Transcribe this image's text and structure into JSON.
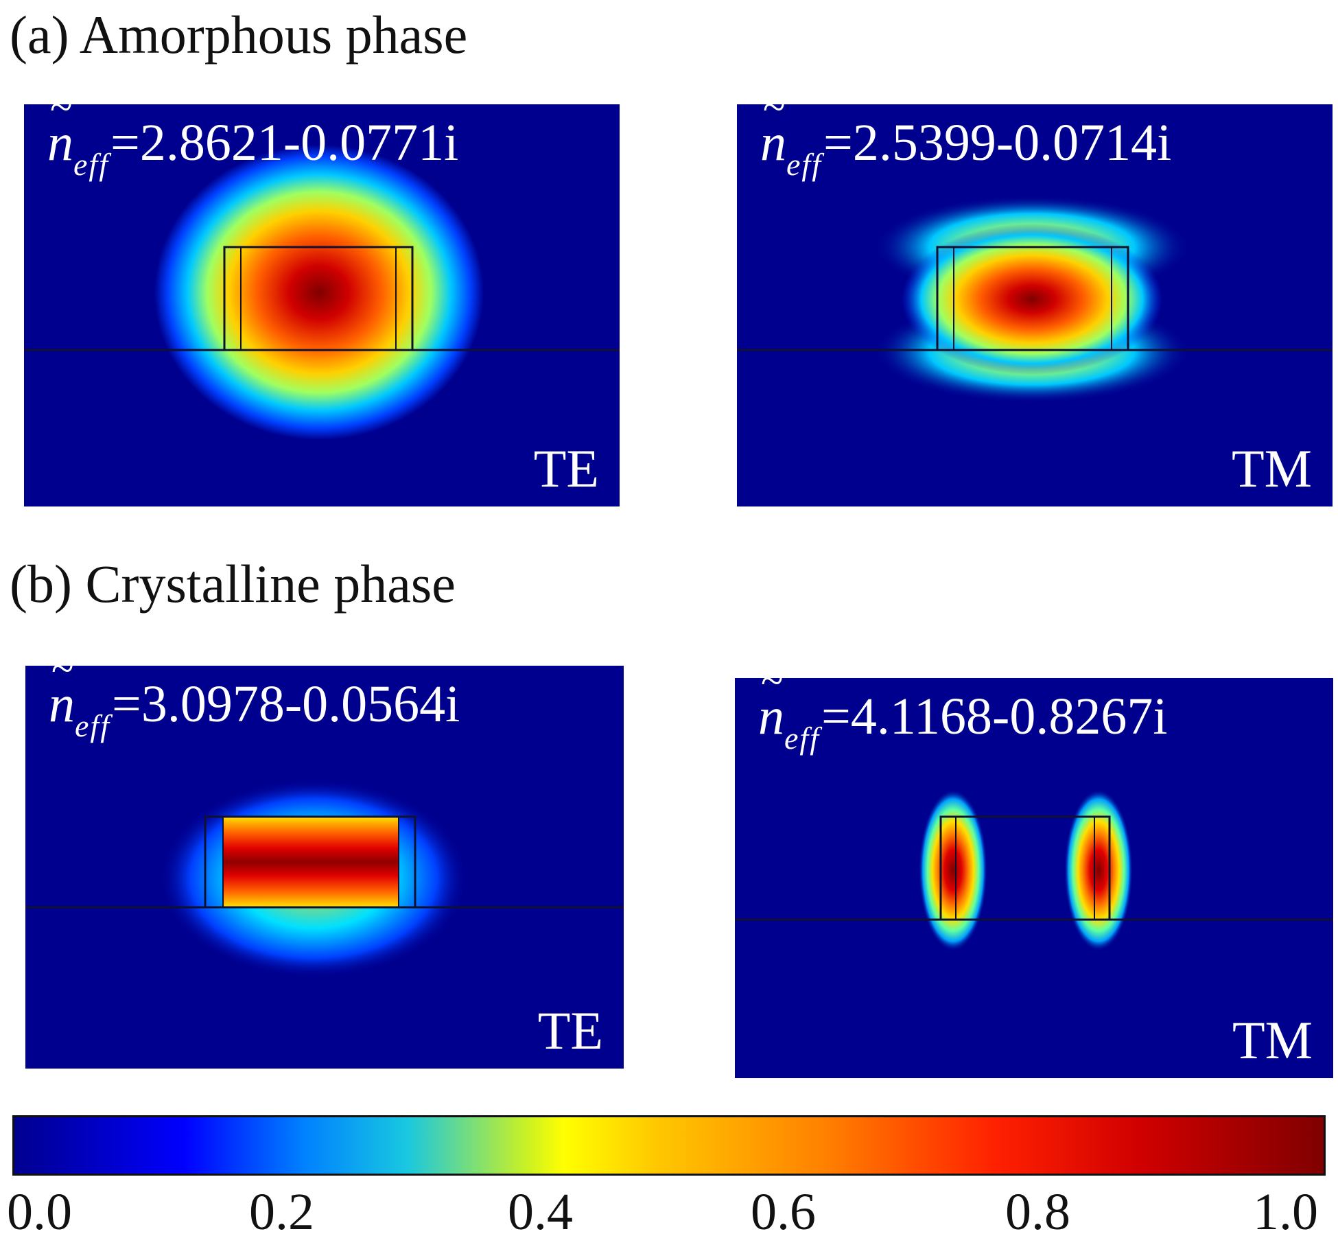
{
  "figure": {
    "title_a": "(a) Amorphous phase",
    "title_b": "(b) Crystalline phase"
  },
  "panels": [
    {
      "id": "a-te",
      "neff_symbol": "n",
      "neff_subscript": "eff",
      "neff_value": "=2.8621-0.0771i",
      "mode": "TE"
    },
    {
      "id": "a-tm",
      "neff_symbol": "n",
      "neff_subscript": "eff",
      "neff_value": "=2.5399-0.0714i",
      "mode": "TM"
    },
    {
      "id": "b-te",
      "neff_symbol": "n",
      "neff_subscript": "eff",
      "neff_value": "=3.0978-0.0564i",
      "mode": "TE"
    },
    {
      "id": "b-tm",
      "neff_symbol": "n",
      "neff_subscript": "eff",
      "neff_value": "=4.1168-0.8267i",
      "mode": "TM"
    }
  ],
  "colorbar": {
    "min": 0.0,
    "max": 1.0,
    "ticks": [
      "0.0",
      "0.2",
      "0.4",
      "0.6",
      "0.8",
      "1.0"
    ]
  },
  "colors": {
    "background_field": "#00008f",
    "waveguide_outline": "#101030"
  }
}
